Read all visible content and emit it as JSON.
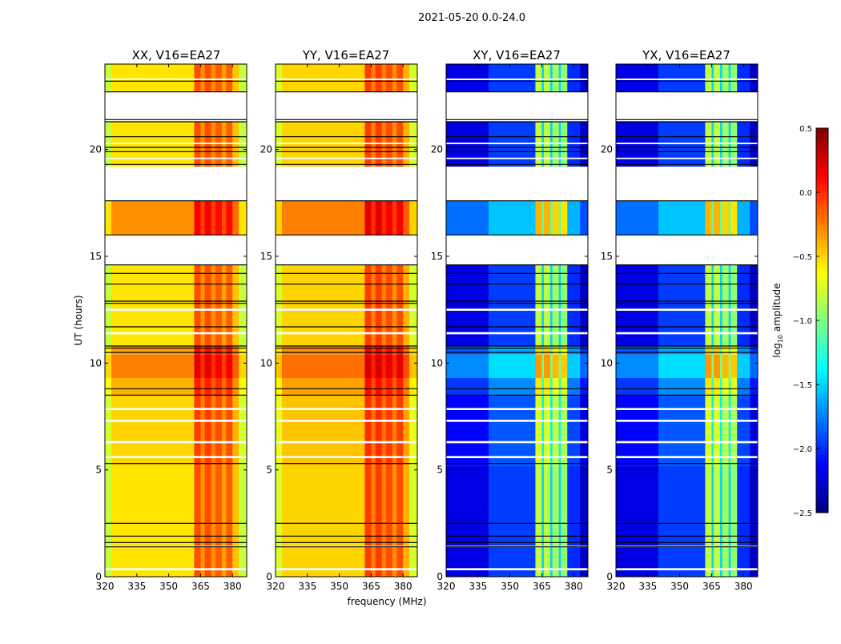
{
  "suptitle": "2021-05-20 0.0-24.0",
  "chart_data": {
    "type": "heatmap",
    "xlabel": "frequency (MHz)",
    "ylabel": "UT (hours)",
    "xlim": [
      320,
      386.7
    ],
    "ylim": [
      0,
      24
    ],
    "xticks": [
      320,
      335,
      350,
      365,
      380
    ],
    "yticks": [
      0,
      5,
      10,
      15,
      20
    ],
    "colorbar": {
      "label": "log10 amplitude",
      "label_main": "log",
      "label_sub": "10",
      "label_rest": " amplitude",
      "range": [
        -2.5,
        0.5
      ],
      "ticks": [
        "0.5",
        "0.0",
        "−0.5",
        "−1.0",
        "−1.5",
        "−2.0",
        "−2.5"
      ],
      "tick_values": [
        0.5,
        0.0,
        -0.5,
        -1.0,
        -1.5,
        -2.0,
        -2.5
      ],
      "colormap": "jet"
    },
    "time_profile": [
      {
        "t": [
          0,
          5.2
        ],
        "d": 0
      },
      {
        "t": [
          5.2,
          8.5
        ],
        "d": 0.05
      },
      {
        "t": [
          8.5,
          9.3
        ],
        "d": 0.15
      },
      {
        "t": [
          9.3,
          10.4
        ],
        "d": 0.3
      },
      {
        "t": [
          10.4,
          10.8
        ],
        "d": 0.2
      },
      {
        "t": [
          10.8,
          14.6
        ],
        "d": 0
      },
      {
        "t": [
          16.0,
          17.6
        ],
        "d": 0.25
      },
      {
        "t": [
          19.2,
          21.3
        ],
        "d": 0
      },
      {
        "t": [
          22.7,
          24.0
        ],
        "d": 0
      }
    ],
    "flagged_ranges": [
      [
        21.3,
        22.7
      ],
      [
        17.6,
        19.2
      ],
      [
        14.6,
        16.0
      ],
      [
        0.3,
        0.4
      ],
      [
        1.38,
        1.45
      ],
      [
        5.55,
        5.65
      ],
      [
        6.25,
        6.35
      ],
      [
        7.25,
        7.35
      ],
      [
        7.8,
        7.9
      ],
      [
        11.35,
        11.45
      ],
      [
        12.45,
        12.55
      ],
      [
        19.55,
        19.62
      ],
      [
        20.25,
        20.32
      ],
      [
        23.25,
        23.32
      ]
    ],
    "black_lines": [
      23.2,
      22.7,
      21.4,
      21.3,
      20.6,
      20.1,
      19.9,
      19.3,
      17.6,
      16.0,
      14.6,
      14.2,
      13.7,
      12.9,
      12.8,
      11.7,
      10.8,
      10.7,
      10.5,
      8.8,
      8.5,
      5.3,
      2.5,
      1.9,
      1.6,
      1.4
    ],
    "panels": [
      {
        "title": "XX, V16=EA27",
        "time_gain": 1.0,
        "segments": [
          [
            320,
            323,
            -0.8
          ],
          [
            323,
            362,
            -0.55
          ],
          [
            362,
            365,
            -0.1
          ],
          [
            365,
            367,
            -0.3
          ],
          [
            367,
            370,
            -0.1
          ],
          [
            370,
            372,
            -0.3
          ],
          [
            372,
            375,
            -0.15
          ],
          [
            375,
            377,
            -0.35
          ],
          [
            377,
            380,
            -0.15
          ],
          [
            380,
            383,
            -0.45
          ],
          [
            383,
            386.7,
            -0.8
          ]
        ]
      },
      {
        "title": "YY, V16=EA27",
        "time_gain": 1.0,
        "segments": [
          [
            320,
            323,
            -0.75
          ],
          [
            323,
            362,
            -0.5
          ],
          [
            362,
            365,
            -0.05
          ],
          [
            365,
            367,
            -0.25
          ],
          [
            367,
            370,
            -0.05
          ],
          [
            370,
            372,
            -0.25
          ],
          [
            372,
            375,
            -0.1
          ],
          [
            375,
            377,
            -0.3
          ],
          [
            377,
            380,
            -0.1
          ],
          [
            380,
            383,
            -0.4
          ],
          [
            383,
            386.7,
            -0.75
          ]
        ]
      },
      {
        "title": "XY, V16=EA27",
        "time_gain": 1.6,
        "segments": [
          [
            320,
            340,
            -2.2
          ],
          [
            340,
            362,
            -1.95
          ],
          [
            362,
            365,
            -0.8
          ],
          [
            365,
            366,
            -1.5
          ],
          [
            366,
            369,
            -0.8
          ],
          [
            369,
            370,
            -1.5
          ],
          [
            370,
            373,
            -0.9
          ],
          [
            373,
            374,
            -1.5
          ],
          [
            374,
            377,
            -0.95
          ],
          [
            377,
            383,
            -2.0
          ],
          [
            383,
            386.7,
            -2.3
          ]
        ]
      },
      {
        "title": "YX, V16=EA27",
        "time_gain": 1.6,
        "segments": [
          [
            320,
            340,
            -2.2
          ],
          [
            340,
            362,
            -1.95
          ],
          [
            362,
            365,
            -0.8
          ],
          [
            365,
            366,
            -1.5
          ],
          [
            366,
            369,
            -0.8
          ],
          [
            369,
            370,
            -1.5
          ],
          [
            370,
            373,
            -0.9
          ],
          [
            373,
            374,
            -1.5
          ],
          [
            374,
            377,
            -0.95
          ],
          [
            377,
            383,
            -2.0
          ],
          [
            383,
            386.7,
            -2.3
          ]
        ]
      }
    ]
  }
}
